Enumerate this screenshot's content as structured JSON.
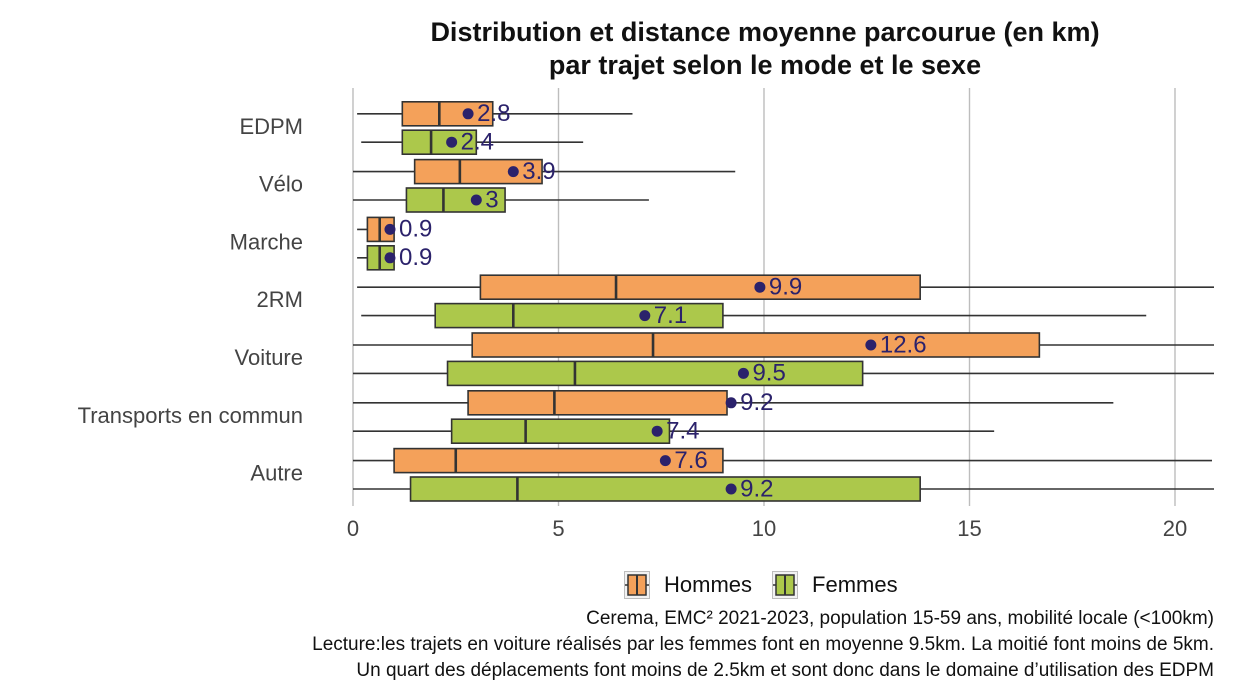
{
  "chart_data": {
    "type": "boxplot",
    "title_lines": [
      "Distribution et distance moyenne parcourue (en km)",
      "par trajet selon le mode et le sexe"
    ],
    "xlim": [
      0,
      21
    ],
    "x_ticks": [
      0,
      5,
      10,
      15,
      20
    ],
    "grid": "vertical",
    "legend_position": "bottom",
    "categories": [
      "EDPM",
      "Vélo",
      "Marche",
      "2RM",
      "Voiture",
      "Transports en commun",
      "Autre"
    ],
    "series": [
      {
        "name": "Hommes",
        "color": "#F4A15A",
        "boxes": [
          {
            "whisker_low": 0.1,
            "q1": 1.2,
            "median": 2.1,
            "q3": 3.4,
            "whisker_high": 6.8,
            "mean": 2.8,
            "mean_label": "2.8"
          },
          {
            "whisker_low": 0.0,
            "q1": 1.5,
            "median": 2.6,
            "q3": 4.6,
            "whisker_high": 9.3,
            "mean": 3.9,
            "mean_label": "3.9"
          },
          {
            "whisker_low": 0.1,
            "q1": 0.35,
            "median": 0.65,
            "q3": 1.0,
            "whisker_high": 1.0,
            "mean": 0.9,
            "mean_label": "0.9"
          },
          {
            "whisker_low": 0.1,
            "q1": 3.1,
            "median": 6.4,
            "q3": 13.8,
            "whisker_high": 21.0,
            "mean": 9.9,
            "mean_label": "9.9"
          },
          {
            "whisker_low": 0.0,
            "q1": 2.9,
            "median": 7.3,
            "q3": 16.7,
            "whisker_high": 21.0,
            "mean": 12.6,
            "mean_label": "12.6"
          },
          {
            "whisker_low": 0.0,
            "q1": 2.8,
            "median": 4.9,
            "q3": 9.1,
            "whisker_high": 18.5,
            "mean": 9.2,
            "mean_label": "9.2"
          },
          {
            "whisker_low": 0.0,
            "q1": 1.0,
            "median": 2.5,
            "q3": 9.0,
            "whisker_high": 20.9,
            "mean": 7.6,
            "mean_label": "7.6"
          }
        ]
      },
      {
        "name": "Femmes",
        "color": "#ACC84B",
        "boxes": [
          {
            "whisker_low": 0.2,
            "q1": 1.2,
            "median": 1.9,
            "q3": 3.0,
            "whisker_high": 5.6,
            "mean": 2.4,
            "mean_label": "2.4"
          },
          {
            "whisker_low": 0.0,
            "q1": 1.3,
            "median": 2.2,
            "q3": 3.7,
            "whisker_high": 7.2,
            "mean": 3.0,
            "mean_label": "3"
          },
          {
            "whisker_low": 0.1,
            "q1": 0.35,
            "median": 0.65,
            "q3": 1.0,
            "whisker_high": 1.0,
            "mean": 0.9,
            "mean_label": "0.9"
          },
          {
            "whisker_low": 0.2,
            "q1": 2.0,
            "median": 3.9,
            "q3": 9.0,
            "whisker_high": 19.3,
            "mean": 7.1,
            "mean_label": "7.1"
          },
          {
            "whisker_low": 0.0,
            "q1": 2.3,
            "median": 5.4,
            "q3": 12.4,
            "whisker_high": 21.0,
            "mean": 9.5,
            "mean_label": "9.5"
          },
          {
            "whisker_low": 0.0,
            "q1": 2.4,
            "median": 4.2,
            "q3": 7.7,
            "whisker_high": 15.6,
            "mean": 7.4,
            "mean_label": "7.4"
          },
          {
            "whisker_low": 0.0,
            "q1": 1.4,
            "median": 4.0,
            "q3": 13.8,
            "whisker_high": 21.0,
            "mean": 9.2,
            "mean_label": "9.2"
          }
        ]
      }
    ],
    "mean_marker_color": "#2B226B"
  },
  "caption_lines": [
    "Cerema, EMC² 2021-2023, population 15-59 ans, mobilité locale (<100km)",
    "Lecture:les trajets en voiture réalisés par les femmes font en moyenne 9.5km. La moitié font moins de 5km.",
    "Un quart des déplacements font moins de 2.5km et sont donc dans le domaine d’utilisation des EDPM"
  ]
}
